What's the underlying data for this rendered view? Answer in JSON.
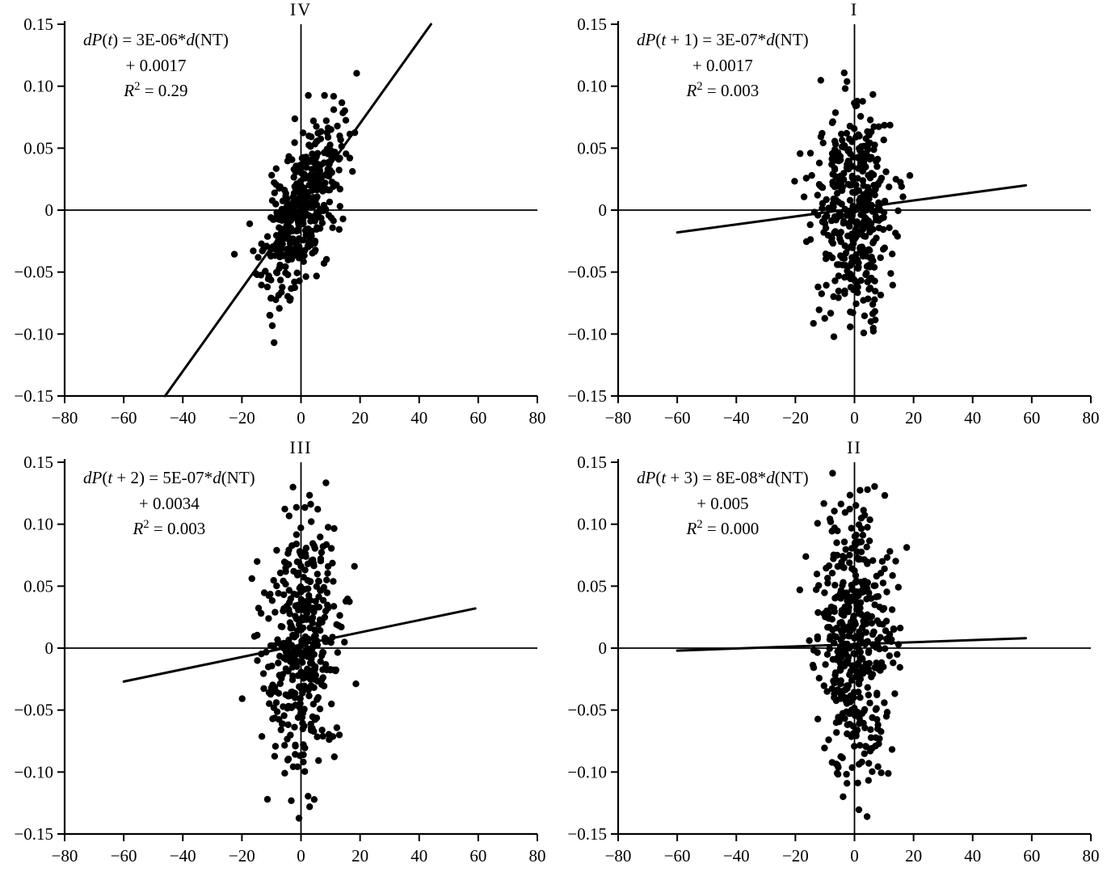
{
  "figure": {
    "background": "#ffffff",
    "ink": "#000000"
  },
  "chart_data": {
    "type": "scatter",
    "layout": "2x2-grid",
    "description": "Four scatter plots of price change dP versus d(NT) with fitted regression lines",
    "shared_axes": {
      "xlim": [
        -80,
        80
      ],
      "ylim": [
        -0.15,
        0.15
      ],
      "x_tick_values": [
        -80,
        -60,
        -40,
        -20,
        0,
        20,
        40,
        60,
        80
      ],
      "x_tick_labels": [
        "−80",
        "−60",
        "−40",
        "−20",
        "0",
        "20",
        "40",
        "60",
        "80"
      ],
      "y_tick_values": [
        0.15,
        0.1,
        0.05,
        0,
        -0.05,
        -0.1,
        -0.15
      ],
      "y_tick_labels": [
        "0.15",
        "0.10",
        "0.05",
        "0",
        "−0.05",
        "−0.10",
        "−0.15"
      ],
      "grid": false,
      "zero_axis_lines": true,
      "legend": "none"
    },
    "panels": [
      {
        "id": "IV",
        "title": "IV",
        "grid_position": "top-left",
        "equation_text": "dP(t) = 3E-06*d(NT) + 0.0017",
        "r_squared": 0.29,
        "eq_segments": [
          [
            "dP",
            "i"
          ],
          [
            "(",
            "n"
          ],
          [
            "t",
            "i"
          ],
          [
            ") = 3E-06*",
            "n"
          ],
          [
            "d",
            "i"
          ],
          [
            "(NT)",
            "n"
          ]
        ],
        "eq_line2": "+ 0.0017",
        "r2_segments": [
          [
            "R",
            "i"
          ],
          [
            "2",
            "s"
          ],
          [
            " = 0.29",
            "n"
          ]
        ],
        "trendline": {
          "x1": -46,
          "y1": -0.15,
          "x2": 44,
          "y2": 0.15
        },
        "scatter_gen": {
          "seed": 11,
          "n": 430,
          "x_std": 6.5,
          "slope": 0.0033,
          "noise_std": 0.027,
          "x_range": [
            -28,
            19
          ],
          "y_range": [
            -0.12,
            0.112
          ]
        }
      },
      {
        "id": "I",
        "title": "I",
        "grid_position": "top-right",
        "equation_text": "dP(t + 1) = 3E-07*d(NT) + 0.0017",
        "r_squared": 0.003,
        "eq_segments": [
          [
            "dP",
            "i"
          ],
          [
            "(",
            "n"
          ],
          [
            "t",
            "i"
          ],
          [
            " + 1) = 3E-07*",
            "n"
          ],
          [
            "d",
            "i"
          ],
          [
            "(NT)",
            "n"
          ]
        ],
        "eq_line2": "+ 0.0017",
        "r2_segments": [
          [
            "R",
            "i"
          ],
          [
            "2",
            "s"
          ],
          [
            " = 0.003",
            "n"
          ]
        ],
        "trendline": {
          "x1": -60,
          "y1": -0.018,
          "x2": 58,
          "y2": 0.02
        },
        "scatter_gen": {
          "seed": 22,
          "n": 420,
          "x_std": 6.5,
          "slope": 0.0003,
          "noise_std": 0.042,
          "x_range": [
            -23,
            20
          ],
          "y_range": [
            -0.12,
            0.112
          ]
        }
      },
      {
        "id": "III",
        "title": "III",
        "grid_position": "bottom-left",
        "equation_text": "dP(t + 2) = 5E-07*d(NT) + 0.0034",
        "r_squared": 0.003,
        "eq_segments": [
          [
            "dP",
            "i"
          ],
          [
            "(",
            "n"
          ],
          [
            "t",
            "i"
          ],
          [
            " + 2) = 5E-07*",
            "n"
          ],
          [
            "d",
            "i"
          ],
          [
            "(NT)",
            "n"
          ]
        ],
        "eq_line2": "+ 0.0034",
        "r2_segments": [
          [
            "R",
            "i"
          ],
          [
            "2",
            "s"
          ],
          [
            " = 0.003",
            "n"
          ]
        ],
        "trendline": {
          "x1": -60,
          "y1": -0.027,
          "x2": 59,
          "y2": 0.032
        },
        "scatter_gen": {
          "seed": 33,
          "n": 430,
          "x_std": 6.5,
          "slope": 0.0005,
          "noise_std": 0.05,
          "x_range": [
            -22,
            20
          ],
          "y_range": [
            -0.145,
            0.146
          ]
        }
      },
      {
        "id": "II",
        "title": "II",
        "grid_position": "bottom-right",
        "equation_text": "dP(t + 3) = 8E-08*d(NT) + 0.005",
        "r_squared": 0.0,
        "eq_segments": [
          [
            "dP",
            "i"
          ],
          [
            "(",
            "n"
          ],
          [
            "t",
            "i"
          ],
          [
            " + 3) = 8E-08*",
            "n"
          ],
          [
            "d",
            "i"
          ],
          [
            "(NT)",
            "n"
          ]
        ],
        "eq_line2": "+ 0.005",
        "r2_segments": [
          [
            "R",
            "i"
          ],
          [
            "2",
            "s"
          ],
          [
            " = 0.000",
            "n"
          ]
        ],
        "trendline": {
          "x1": -60,
          "y1": -0.002,
          "x2": 58,
          "y2": 0.008
        },
        "scatter_gen": {
          "seed": 44,
          "n": 460,
          "x_std": 6.5,
          "slope": 0.0001,
          "noise_std": 0.052,
          "x_range": [
            -22,
            20
          ],
          "y_range": [
            -0.148,
            0.15
          ]
        }
      }
    ]
  }
}
